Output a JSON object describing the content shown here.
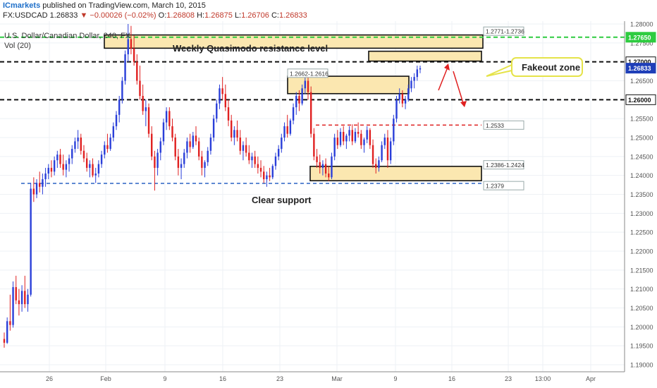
{
  "header": {
    "brand": "ICmarkets",
    "published": "published on TradingView.com, March 10, 2015",
    "symbol": "FX:USDCAD",
    "last": "1.26833",
    "change": "▼ −0.00026 (−0.02%)",
    "o_label": "O:",
    "o_value": "1.26808",
    "h_label": "H:",
    "h_value": "1.26875",
    "l_label": "L:",
    "l_value": "1.26706",
    "c_label": "C:",
    "c_value": "1.26833"
  },
  "colors": {
    "bull": "#2a3fd9",
    "bear": "#e02020",
    "zone_fill": "#fbe7b0",
    "green_line": "#2ecc40",
    "black_line": "#111111",
    "red_line": "#e03030",
    "blue_line": "#3a6fc8",
    "callout_border": "#e5e34a",
    "arrow": "#e02020"
  },
  "chart_data": {
    "type": "candlestick",
    "title": "U.S. Dollar/Canadian Dollar, 240, FX",
    "indicator": "Vol (20)",
    "ylim": [
      1.19,
      1.282
    ],
    "y_ticks": [
      "1.28000",
      "1.27500",
      "1.26500",
      "1.26000",
      "1.25500",
      "1.25000",
      "1.24500",
      "1.24000",
      "1.23500",
      "1.23000",
      "1.22500",
      "1.22000",
      "1.21500",
      "1.21000",
      "1.20500",
      "1.20000",
      "1.19500",
      "1.19000"
    ],
    "x_ticks": [
      "26",
      "Feb",
      "9",
      "16",
      "23",
      "Mar",
      "9",
      "16",
      "23",
      "13:00",
      "Apr"
    ],
    "horizontal_levels": [
      {
        "price": 1.2765,
        "label": "1.27650",
        "color": "#2ecc40",
        "style": "dashed"
      },
      {
        "price": 1.27,
        "label": "1.27000",
        "color": "#111111",
        "style": "dashed"
      },
      {
        "price": 1.26,
        "label": "1.26000",
        "color": "#111111",
        "style": "dashed"
      },
      {
        "price": 1.2533,
        "label": "1.2533",
        "color": "#e03030",
        "style": "dashed"
      },
      {
        "price": 1.2379,
        "label": "1.2379",
        "color": "#3a6fc8",
        "style": "dashed"
      }
    ],
    "zones": [
      {
        "label": "1.2771-1.2736",
        "top": 1.2771,
        "bottom": 1.2736
      },
      {
        "label": "1.2662-1.2616",
        "top": 1.2662,
        "bottom": 1.2616
      },
      {
        "label": "1.2386-1.2424",
        "top": 1.2424,
        "bottom": 1.2386
      },
      {
        "label": "",
        "top": 1.2728,
        "bottom": 1.2702
      }
    ],
    "last_price": "1.26833",
    "annotations": {
      "weekly": "Weekly Quasimodo resistance level",
      "fakeout": "Fakeout zone",
      "support": "Clear support"
    },
    "ohlc": [
      [
        1.1968,
        1.1985,
        1.1945,
        1.1958
      ],
      [
        1.1958,
        1.2025,
        1.1955,
        1.2015
      ],
      [
        1.2015,
        1.2085,
        1.199,
        1.2005
      ],
      [
        1.2005,
        1.212,
        1.1998,
        1.2105
      ],
      [
        1.2105,
        1.2135,
        1.206,
        1.207
      ],
      [
        1.207,
        1.21,
        1.203,
        1.206
      ],
      [
        1.206,
        1.211,
        1.204,
        1.2095
      ],
      [
        1.2095,
        1.2135,
        1.205,
        1.206
      ],
      [
        1.206,
        1.21,
        1.204,
        1.2085
      ],
      [
        1.2085,
        1.238,
        1.208,
        1.2365
      ],
      [
        1.2365,
        1.2395,
        1.233,
        1.235
      ],
      [
        1.235,
        1.239,
        1.234,
        1.238
      ],
      [
        1.238,
        1.241,
        1.2355,
        1.237
      ],
      [
        1.237,
        1.2405,
        1.235,
        1.239
      ],
      [
        1.239,
        1.242,
        1.237,
        1.2405
      ],
      [
        1.2405,
        1.243,
        1.239,
        1.242
      ],
      [
        1.242,
        1.244,
        1.2395,
        1.241
      ],
      [
        1.241,
        1.245,
        1.24,
        1.244
      ],
      [
        1.244,
        1.2465,
        1.242,
        1.2455
      ],
      [
        1.2455,
        1.247,
        1.242,
        1.243
      ],
      [
        1.243,
        1.2455,
        1.24,
        1.2415
      ],
      [
        1.2415,
        1.244,
        1.2395,
        1.243
      ],
      [
        1.243,
        1.2455,
        1.241,
        1.2445
      ],
      [
        1.2445,
        1.248,
        1.243,
        1.247
      ],
      [
        1.247,
        1.25,
        1.246,
        1.249
      ],
      [
        1.249,
        1.252,
        1.247,
        1.25
      ],
      [
        1.25,
        1.251,
        1.2455,
        1.2465
      ],
      [
        1.2465,
        1.248,
        1.2435,
        1.2445
      ],
      [
        1.2445,
        1.246,
        1.241,
        1.242
      ],
      [
        1.242,
        1.244,
        1.2395,
        1.243
      ],
      [
        1.243,
        1.2445,
        1.2395,
        1.24
      ],
      [
        1.24,
        1.242,
        1.238,
        1.2405
      ],
      [
        1.2405,
        1.244,
        1.2395,
        1.243
      ],
      [
        1.243,
        1.2465,
        1.242,
        1.2455
      ],
      [
        1.2455,
        1.249,
        1.2445,
        1.248
      ],
      [
        1.248,
        1.251,
        1.246,
        1.247
      ],
      [
        1.247,
        1.251,
        1.2465,
        1.25
      ],
      [
        1.25,
        1.254,
        1.249,
        1.253
      ],
      [
        1.253,
        1.257,
        1.252,
        1.256
      ],
      [
        1.256,
        1.261,
        1.254,
        1.26
      ],
      [
        1.26,
        1.266,
        1.259,
        1.265
      ],
      [
        1.265,
        1.273,
        1.264,
        1.272
      ],
      [
        1.272,
        1.28,
        1.27,
        1.276
      ],
      [
        1.276,
        1.2795,
        1.272,
        1.2735
      ],
      [
        1.2735,
        1.277,
        1.269,
        1.27
      ],
      [
        1.27,
        1.272,
        1.264,
        1.265
      ],
      [
        1.265,
        1.269,
        1.26,
        1.261
      ],
      [
        1.261,
        1.264,
        1.256,
        1.257
      ],
      [
        1.257,
        1.26,
        1.253,
        1.258
      ],
      [
        1.258,
        1.259,
        1.25,
        1.251
      ],
      [
        1.251,
        1.253,
        1.244,
        1.245
      ],
      [
        1.245,
        1.2465,
        1.236,
        1.242
      ],
      [
        1.242,
        1.247,
        1.24,
        1.246
      ],
      [
        1.246,
        1.25,
        1.244,
        1.249
      ],
      [
        1.249,
        1.255,
        1.248,
        1.254
      ],
      [
        1.254,
        1.258,
        1.252,
        1.257
      ],
      [
        1.257,
        1.258,
        1.252,
        1.253
      ],
      [
        1.253,
        1.255,
        1.249,
        1.25
      ],
      [
        1.25,
        1.251,
        1.244,
        1.245
      ],
      [
        1.245,
        1.247,
        1.24,
        1.242
      ],
      [
        1.242,
        1.2445,
        1.239,
        1.243
      ],
      [
        1.243,
        1.247,
        1.242,
        1.246
      ],
      [
        1.246,
        1.25,
        1.2445,
        1.249
      ],
      [
        1.249,
        1.251,
        1.246,
        1.2475
      ],
      [
        1.2475,
        1.2515,
        1.247,
        1.2505
      ],
      [
        1.2505,
        1.253,
        1.248,
        1.249
      ],
      [
        1.249,
        1.25,
        1.244,
        1.245
      ],
      [
        1.245,
        1.2465,
        1.24,
        1.242
      ],
      [
        1.242,
        1.244,
        1.2395,
        1.2435
      ],
      [
        1.2435,
        1.2475,
        1.2425,
        1.2465
      ],
      [
        1.2465,
        1.251,
        1.2455,
        1.25
      ],
      [
        1.25,
        1.256,
        1.249,
        1.255
      ],
      [
        1.255,
        1.26,
        1.254,
        1.259
      ],
      [
        1.259,
        1.264,
        1.2575,
        1.263
      ],
      [
        1.263,
        1.266,
        1.26,
        1.2615
      ],
      [
        1.2615,
        1.264,
        1.257,
        1.258
      ],
      [
        1.258,
        1.26,
        1.253,
        1.2545
      ],
      [
        1.2545,
        1.256,
        1.249,
        1.25
      ],
      [
        1.25,
        1.253,
        1.248,
        1.252
      ],
      [
        1.252,
        1.2545,
        1.249,
        1.25
      ],
      [
        1.25,
        1.252,
        1.2455,
        1.2465
      ],
      [
        1.2465,
        1.249,
        1.244,
        1.248
      ],
      [
        1.248,
        1.25,
        1.245,
        1.246
      ],
      [
        1.246,
        1.248,
        1.243,
        1.244
      ],
      [
        1.244,
        1.246,
        1.242,
        1.245
      ],
      [
        1.245,
        1.2465,
        1.242,
        1.243
      ],
      [
        1.243,
        1.245,
        1.2405,
        1.242
      ],
      [
        1.242,
        1.244,
        1.2395,
        1.241
      ],
      [
        1.241,
        1.2425,
        1.238,
        1.239
      ],
      [
        1.239,
        1.241,
        1.237,
        1.24
      ],
      [
        1.24,
        1.242,
        1.2385,
        1.2395
      ],
      [
        1.2395,
        1.243,
        1.239,
        1.2425
      ],
      [
        1.2425,
        1.246,
        1.2415,
        1.245
      ],
      [
        1.245,
        1.248,
        1.244,
        1.247
      ],
      [
        1.247,
        1.251,
        1.246,
        1.25
      ],
      [
        1.25,
        1.254,
        1.249,
        1.253
      ],
      [
        1.253,
        1.256,
        1.25,
        1.251
      ],
      [
        1.251,
        1.255,
        1.2505,
        1.2545
      ],
      [
        1.2545,
        1.259,
        1.2535,
        1.258
      ],
      [
        1.258,
        1.262,
        1.256,
        1.261
      ],
      [
        1.261,
        1.2625,
        1.257,
        1.259
      ],
      [
        1.259,
        1.264,
        1.2585,
        1.263
      ],
      [
        1.263,
        1.2665,
        1.2615,
        1.265
      ],
      [
        1.265,
        1.266,
        1.26,
        1.262
      ],
      [
        1.262,
        1.2635,
        1.25,
        1.251
      ],
      [
        1.251,
        1.2525,
        1.244,
        1.245
      ],
      [
        1.245,
        1.247,
        1.242,
        1.2435
      ],
      [
        1.2435,
        1.2455,
        1.2405,
        1.242
      ],
      [
        1.242,
        1.244,
        1.24,
        1.243
      ],
      [
        1.243,
        1.2445,
        1.2395,
        1.2405
      ],
      [
        1.2405,
        1.2425,
        1.2385,
        1.2395
      ],
      [
        1.2395,
        1.246,
        1.239,
        1.245
      ],
      [
        1.245,
        1.251,
        1.244,
        1.25
      ],
      [
        1.25,
        1.252,
        1.247,
        1.248
      ],
      [
        1.248,
        1.2525,
        1.2475,
        1.2515
      ],
      [
        1.2515,
        1.253,
        1.248,
        1.249
      ],
      [
        1.249,
        1.251,
        1.247,
        1.2505
      ],
      [
        1.2505,
        1.253,
        1.249,
        1.252
      ],
      [
        1.252,
        1.2535,
        1.248,
        1.249
      ],
      [
        1.249,
        1.2525,
        1.2485,
        1.2515
      ],
      [
        1.2515,
        1.254,
        1.25,
        1.251
      ],
      [
        1.251,
        1.252,
        1.247,
        1.248
      ],
      [
        1.248,
        1.25,
        1.246,
        1.2495
      ],
      [
        1.2495,
        1.253,
        1.2485,
        1.252
      ],
      [
        1.252,
        1.2525,
        1.247,
        1.248
      ],
      [
        1.248,
        1.2495,
        1.242,
        1.243
      ],
      [
        1.243,
        1.2445,
        1.2405,
        1.242
      ],
      [
        1.242,
        1.245,
        1.241,
        1.244
      ],
      [
        1.244,
        1.249,
        1.2435,
        1.248
      ],
      [
        1.248,
        1.251,
        1.247,
        1.25
      ],
      [
        1.25,
        1.252,
        1.242,
        1.244
      ],
      [
        1.244,
        1.25,
        1.243,
        1.249
      ],
      [
        1.249,
        1.256,
        1.248,
        1.255
      ],
      [
        1.255,
        1.261,
        1.254,
        1.26
      ],
      [
        1.26,
        1.263,
        1.259,
        1.2615
      ],
      [
        1.2615,
        1.2625,
        1.258,
        1.259
      ],
      [
        1.259,
        1.261,
        1.2575,
        1.26
      ],
      [
        1.26,
        1.264,
        1.2595,
        1.263
      ],
      [
        1.263,
        1.266,
        1.262,
        1.265
      ],
      [
        1.265,
        1.267,
        1.263,
        1.266
      ],
      [
        1.266,
        1.269,
        1.265,
        1.268
      ],
      [
        1.268,
        1.269,
        1.267,
        1.2683
      ]
    ]
  },
  "sample_note": ""
}
